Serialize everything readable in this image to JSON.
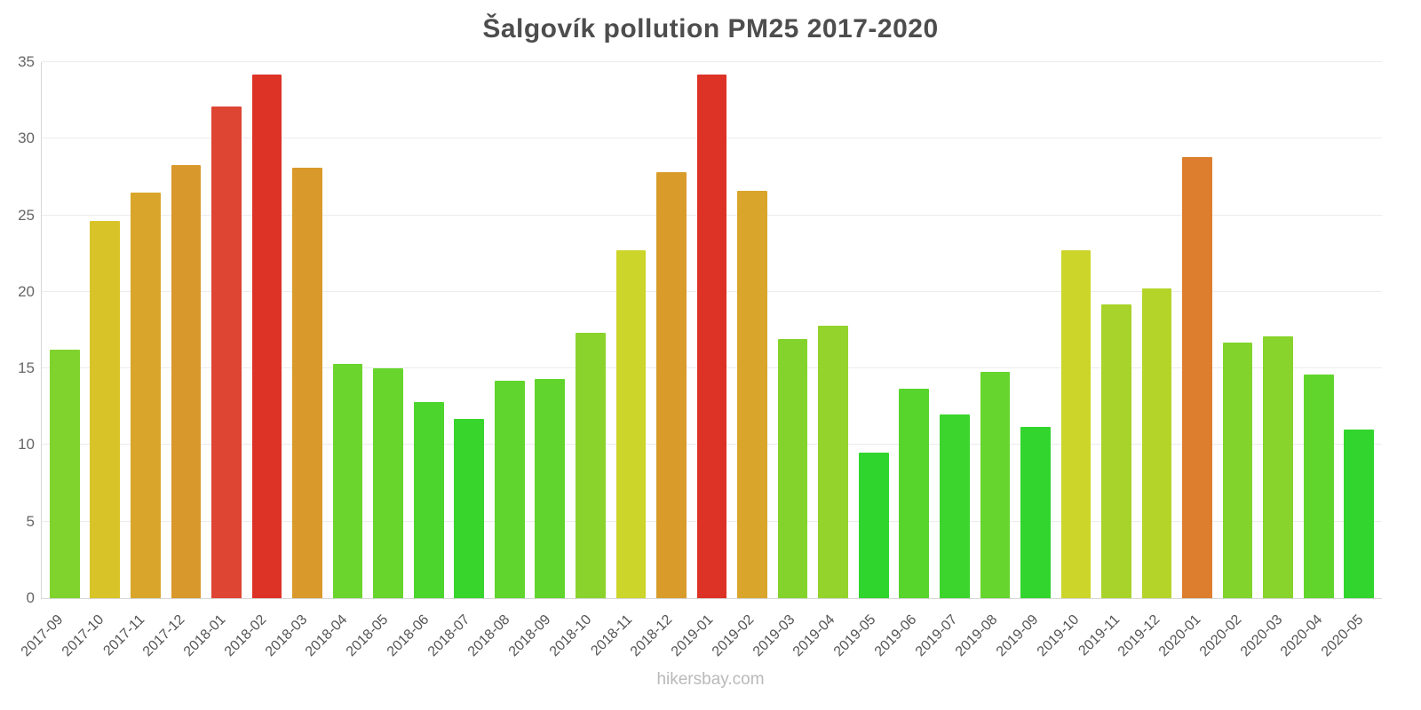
{
  "chart": {
    "title": "Šalgovík pollution PM25 2017-2020",
    "footer": "hikersbay.com"
  },
  "chart_data": {
    "type": "bar",
    "title": "Šalgovík pollution PM25 2017-2020",
    "categories": [
      "2017-09",
      "2017-10",
      "2017-11",
      "2017-12",
      "2018-01",
      "2018-02",
      "2018-03",
      "2018-04",
      "2018-05",
      "2018-06",
      "2018-07",
      "2018-08",
      "2018-09",
      "2018-10",
      "2018-11",
      "2018-12",
      "2019-01",
      "2019-02",
      "2019-03",
      "2019-04",
      "2019-05",
      "2019-06",
      "2019-07",
      "2019-08",
      "2019-09",
      "2019-10",
      "2019-11",
      "2019-12",
      "2020-01",
      "2020-02",
      "2020-03",
      "2020-04",
      "2020-05"
    ],
    "values": [
      16.2,
      24.6,
      26.5,
      28.3,
      32.1,
      34.2,
      28.1,
      15.3,
      15.0,
      12.8,
      11.7,
      14.2,
      14.3,
      17.3,
      22.7,
      27.8,
      34.2,
      26.6,
      16.9,
      17.8,
      9.5,
      13.7,
      12.0,
      14.8,
      11.2,
      22.7,
      19.2,
      20.2,
      28.8,
      16.7,
      17.1,
      14.6,
      11.0
    ],
    "colors": [
      "#7fd32c",
      "#d8c428",
      "#d9a62b",
      "#d9982b",
      "#de4533",
      "#dd3226",
      "#d9992b",
      "#6cd52d",
      "#68d52d",
      "#4cd52d",
      "#38d52d",
      "#60d52d",
      "#61d52d",
      "#8ad32c",
      "#ccd529",
      "#d99c2b",
      "#dd3226",
      "#d9a52b",
      "#84d32c",
      "#93d32c",
      "#2fd52d",
      "#57d52d",
      "#3bd52d",
      "#66d52d",
      "#32d52d",
      "#ccd529",
      "#a8d32b",
      "#b5d42a",
      "#dd7e2e",
      "#82d32c",
      "#88d32c",
      "#62d52d",
      "#31d52d"
    ],
    "xlabel": "",
    "ylabel": "",
    "ylim": [
      0,
      35
    ],
    "yticks": [
      0,
      5,
      10,
      15,
      20,
      25,
      30,
      35
    ],
    "grid": true,
    "legend": false,
    "watermark": "hikersbay.com"
  }
}
